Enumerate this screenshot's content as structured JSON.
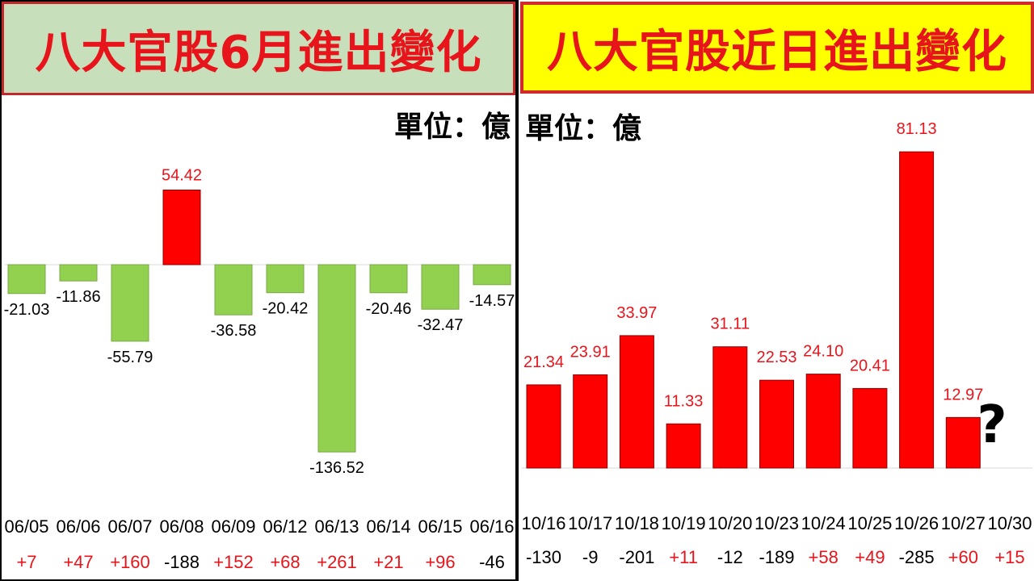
{
  "colors": {
    "positive_bar": "#ff0000",
    "negative_bar": "#92d050",
    "positive_text": "#e8141b",
    "negative_text": "#000000"
  },
  "left": {
    "title": "八大官股6月進出變化",
    "unit": "單位：億"
  },
  "right": {
    "title": "八大官股近日進出變化",
    "unit": "單位：億",
    "pending_mark": "?"
  },
  "chart_data": [
    {
      "type": "bar",
      "title": "八大官股6月進出變化",
      "unit": "單位：億",
      "categories": [
        "06/05",
        "06/06",
        "06/07",
        "06/08",
        "06/09",
        "06/12",
        "06/13",
        "06/14",
        "06/15",
        "06/16"
      ],
      "values": [
        -21.03,
        -11.86,
        -55.79,
        54.42,
        -36.58,
        -20.42,
        -136.52,
        -20.46,
        -32.47,
        -14.57
      ],
      "value_labels": [
        "-21.03",
        "-11.86",
        "-55.79",
        "54.42",
        "-36.58",
        "-20.42",
        "-136.52",
        "-20.46",
        "-32.47",
        "-14.57"
      ],
      "secondary_labels": [
        "+7",
        "+47",
        "+160",
        "-188",
        "+152",
        "+68",
        "+261",
        "+21",
        "+96",
        "-46"
      ],
      "ylim": [
        -136.52,
        54.42
      ]
    },
    {
      "type": "bar",
      "title": "八大官股近日進出變化",
      "unit": "單位：億",
      "categories": [
        "10/16",
        "10/17",
        "10/18",
        "10/19",
        "10/20",
        "10/23",
        "10/24",
        "10/25",
        "10/26",
        "10/27",
        "10/30"
      ],
      "values": [
        21.34,
        23.91,
        33.97,
        11.33,
        31.11,
        22.53,
        24.1,
        20.41,
        81.13,
        12.97,
        null
      ],
      "value_labels": [
        "21.34",
        "23.91",
        "33.97",
        "11.33",
        "31.11",
        "22.53",
        "24.10",
        "20.41",
        "81.13",
        "12.97",
        "?"
      ],
      "secondary_labels": [
        "-130",
        "-9",
        "-201",
        "+11",
        "-12",
        "-189",
        "+58",
        "+49",
        "-285",
        "+60",
        "+15"
      ],
      "ylim": [
        0,
        81.13
      ]
    }
  ]
}
